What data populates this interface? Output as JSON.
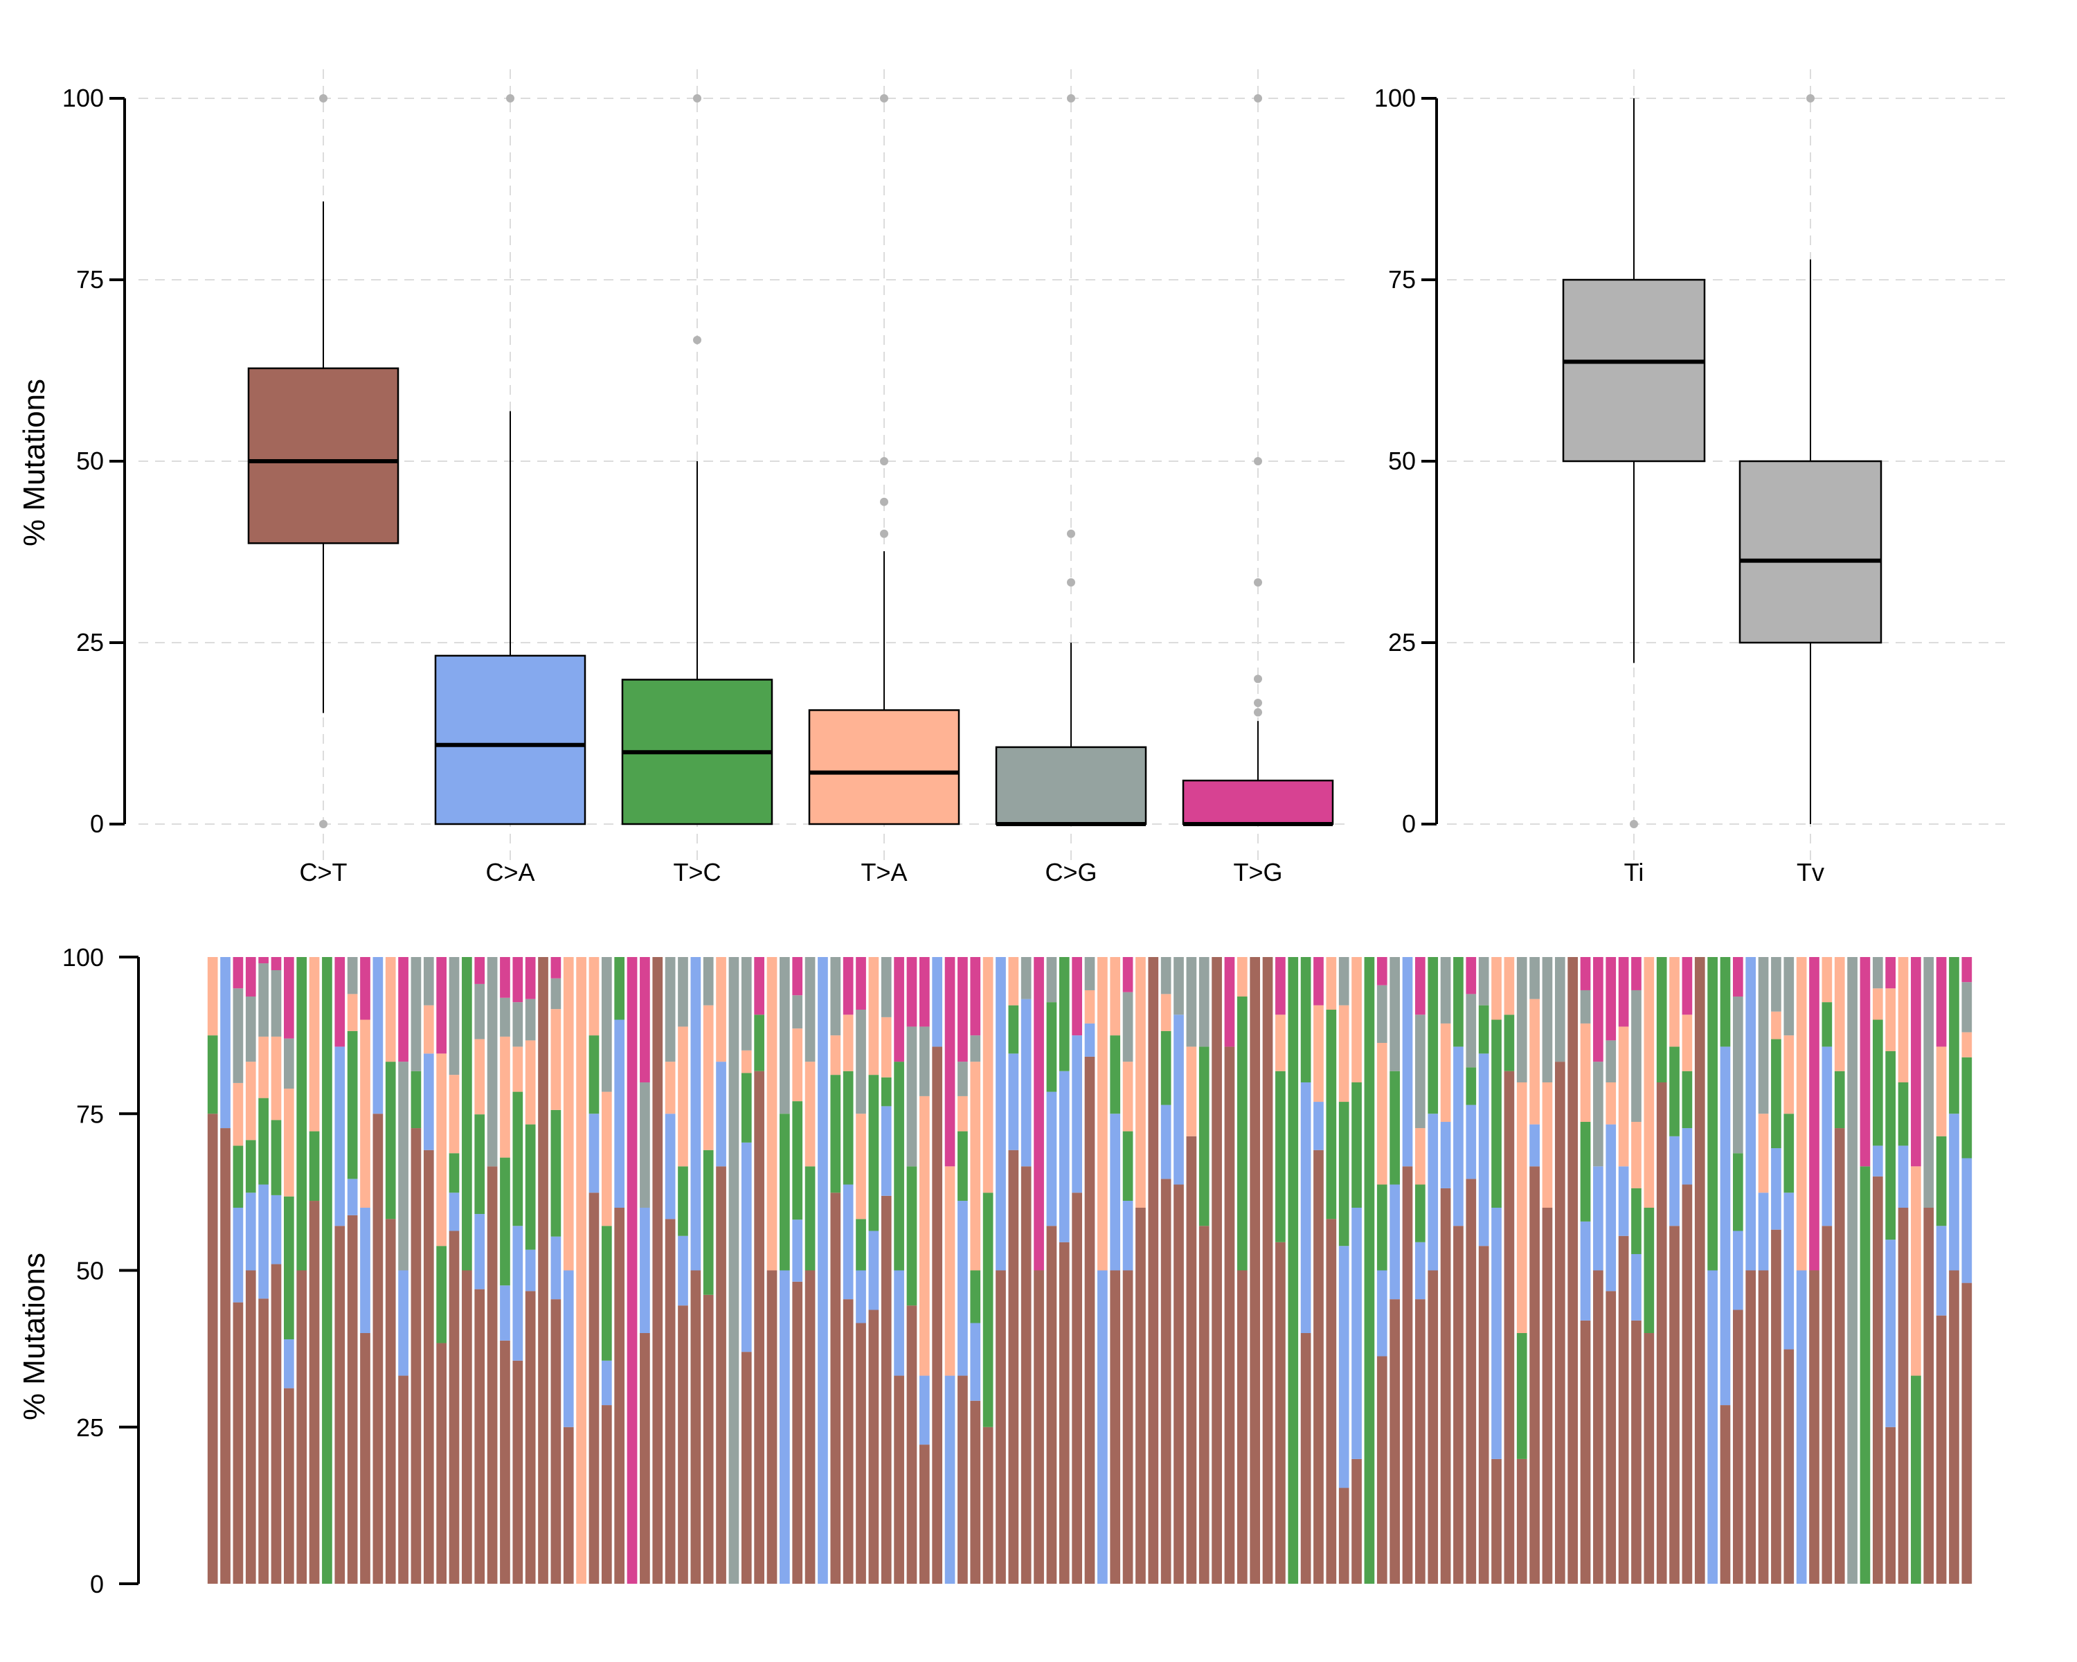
{
  "chart_data": [
    {
      "type": "boxplot",
      "panel": "top-left",
      "title": "",
      "xlabel": "",
      "ylabel": "% Mutations",
      "ylim": [
        0,
        100
      ],
      "yticks": [
        0,
        25,
        50,
        75,
        100
      ],
      "grid": true,
      "categories": [
        "C>T",
        "C>A",
        "T>C",
        "T>A",
        "C>G",
        "T>G"
      ],
      "colors": [
        "#A3675B",
        "#85A9EE",
        "#4EA24E",
        "#FFB394",
        "#95A3A0",
        "#D74292"
      ],
      "boxes": [
        {
          "name": "C>T",
          "whisker_low": 15.3,
          "q1": 38.7,
          "median": 50.0,
          "q3": 62.8,
          "whisker_high": 85.8,
          "outliers": [
            100,
            0
          ]
        },
        {
          "name": "C>A",
          "whisker_low": 0,
          "q1": 0,
          "median": 10.9,
          "q3": 23.2,
          "whisker_high": 56.9,
          "outliers": [
            100
          ]
        },
        {
          "name": "T>C",
          "whisker_low": 0,
          "q1": 0,
          "median": 9.9,
          "q3": 19.9,
          "whisker_high": 50.0,
          "outliers": [
            100,
            66.7
          ]
        },
        {
          "name": "T>A",
          "whisker_low": 0,
          "q1": 0,
          "median": 7.1,
          "q3": 15.7,
          "whisker_high": 37.6,
          "outliers": [
            100,
            50,
            44.4,
            40
          ]
        },
        {
          "name": "C>G",
          "whisker_low": 0,
          "q1": 0,
          "median": 0,
          "q3": 10.6,
          "whisker_high": 25.0,
          "outliers": [
            100,
            40,
            33.3
          ]
        },
        {
          "name": "T>G",
          "whisker_low": 0,
          "q1": 0,
          "median": 0,
          "q3": 6.0,
          "whisker_high": 14.2,
          "outliers": [
            100,
            50,
            33.3,
            20,
            16.7,
            15.4
          ]
        }
      ]
    },
    {
      "type": "boxplot",
      "panel": "top-right",
      "title": "",
      "xlabel": "",
      "ylabel": "",
      "ylim": [
        0,
        100
      ],
      "yticks": [
        0,
        25,
        50,
        75,
        100
      ],
      "grid": true,
      "categories": [
        "Ti",
        "Tv"
      ],
      "colors": [
        "#B3B3B3",
        "#B3B3B3"
      ],
      "boxes": [
        {
          "name": "Ti",
          "whisker_low": 22.2,
          "q1": 50.0,
          "median": 63.7,
          "q3": 75.0,
          "whisker_high": 100,
          "outliers": [
            0
          ]
        },
        {
          "name": "Tv",
          "whisker_low": 0,
          "q1": 25.0,
          "median": 36.3,
          "q3": 50.0,
          "whisker_high": 77.8,
          "outliers": [
            100
          ]
        }
      ]
    },
    {
      "type": "bar",
      "stacked": true,
      "panel": "bottom",
      "title": "",
      "xlabel": "",
      "ylabel": "% Mutations",
      "ylim": [
        0,
        100
      ],
      "yticks": [
        0,
        25,
        50,
        75,
        100
      ],
      "grid": false,
      "series_names": [
        "C>T",
        "C>A",
        "T>C",
        "T>A",
        "C>G",
        "T>G"
      ],
      "series_colors": [
        "#A3675B",
        "#85A9EE",
        "#4EA24E",
        "#FFB394",
        "#95A3A0",
        "#D74292"
      ],
      "samples": [
        [
          75,
          0,
          12.5,
          12.5,
          0,
          0
        ],
        [
          72.7,
          27.3,
          0,
          0,
          0,
          0
        ],
        [
          44.9,
          15.1,
          9.9,
          10,
          15.1,
          5
        ],
        [
          50,
          12.4,
          8.4,
          12.5,
          10.4,
          6.3
        ],
        [
          45.5,
          18.2,
          13.8,
          9.8,
          11.7,
          1
        ],
        [
          51,
          11,
          12,
          13.3,
          10.6,
          2.1
        ],
        [
          31.2,
          7.8,
          22.8,
          17.2,
          8,
          13
        ],
        [
          50,
          0,
          50,
          0,
          0,
          0
        ],
        [
          61.1,
          0,
          11.1,
          27.8,
          0,
          0
        ],
        [
          0,
          0,
          100,
          0,
          0,
          0
        ],
        [
          57.1,
          28.6,
          0,
          0,
          0,
          14.3
        ],
        [
          58.8,
          5.8,
          23.6,
          5.9,
          5.9,
          0
        ],
        [
          40,
          20,
          0,
          30,
          0,
          10
        ],
        [
          75,
          25,
          0,
          0,
          0,
          0
        ],
        [
          58.2,
          0,
          25.1,
          16.7,
          0,
          0
        ],
        [
          33.2,
          16.8,
          0,
          0,
          33.3,
          16.7
        ],
        [
          72.7,
          0,
          9.1,
          0,
          18.2,
          0
        ],
        [
          69.2,
          15.4,
          0,
          7.7,
          7.7,
          0
        ],
        [
          38.4,
          0,
          15.5,
          30.7,
          0,
          15.4
        ],
        [
          56.3,
          6.1,
          6.3,
          12.5,
          18.8,
          0
        ],
        [
          50,
          0,
          50,
          0,
          0,
          0
        ],
        [
          47,
          12,
          15.9,
          12,
          8.8,
          4.3
        ],
        [
          66.6,
          0,
          0,
          0,
          33.4,
          0
        ],
        [
          38.8,
          8.8,
          20.4,
          19.3,
          6.2,
          6.5
        ],
        [
          35.6,
          21.5,
          21.4,
          7.2,
          7.1,
          7.2
        ],
        [
          46.7,
          6.6,
          20,
          13.4,
          6.6,
          6.7
        ],
        [
          100,
          0,
          0,
          0,
          0,
          0
        ],
        [
          45.4,
          10,
          20.2,
          16.1,
          4.9,
          3.4
        ],
        [
          25,
          25,
          0,
          50,
          0,
          0
        ],
        [
          0,
          0,
          0,
          100,
          0,
          0
        ],
        [
          62.4,
          12.6,
          12.5,
          12.5,
          0,
          0
        ],
        [
          28.5,
          7.1,
          21.5,
          21.4,
          21.5,
          0
        ],
        [
          60,
          30,
          10,
          0,
          0,
          0
        ],
        [
          0,
          0,
          0,
          0,
          0,
          100
        ],
        [
          40,
          20,
          0,
          0,
          20,
          20
        ],
        [
          100,
          0,
          0,
          0,
          0,
          0
        ],
        [
          58.2,
          16.8,
          0,
          8.3,
          16.7,
          0
        ],
        [
          44.4,
          11.1,
          11.1,
          22.3,
          11.1,
          0
        ],
        [
          50,
          50,
          0,
          0,
          0,
          0
        ],
        [
          46.1,
          0,
          23.1,
          23.1,
          7.7,
          0
        ],
        [
          66.6,
          16.7,
          0,
          16.7,
          0,
          0
        ],
        [
          0,
          0,
          0,
          0,
          100,
          0
        ],
        [
          37,
          33.4,
          11.1,
          3.6,
          14.9,
          0
        ],
        [
          81.8,
          0,
          9,
          0,
          0,
          9.2
        ],
        [
          50,
          0,
          0,
          50,
          0,
          0
        ],
        [
          0,
          50,
          25,
          0,
          25,
          0
        ],
        [
          48.2,
          9.9,
          18.9,
          11.6,
          5.3,
          6.1
        ],
        [
          50,
          0,
          16.6,
          16.7,
          16.7,
          0
        ],
        [
          0,
          100,
          0,
          0,
          0,
          0
        ],
        [
          62.4,
          0,
          18.8,
          6.3,
          12.5,
          0
        ],
        [
          45.4,
          18.3,
          18.1,
          9,
          0,
          9.2
        ],
        [
          41.6,
          8.4,
          8.2,
          16.8,
          16.6,
          8.4
        ],
        [
          43.7,
          12.6,
          24.9,
          18.8,
          0,
          0
        ],
        [
          61.9,
          14.3,
          4.6,
          9.6,
          9.6,
          0
        ],
        [
          33.2,
          16.8,
          33.3,
          0,
          0,
          16.7
        ],
        [
          44.4,
          0,
          22.2,
          0,
          22.3,
          11.1
        ],
        [
          22.2,
          11,
          0,
          44.6,
          11.1,
          11.1
        ],
        [
          85.7,
          14.3,
          0,
          0,
          0,
          0
        ],
        [
          0,
          33.2,
          0,
          33.4,
          0,
          33.4
        ],
        [
          33.2,
          27.9,
          11.1,
          5.6,
          5.5,
          16.7
        ],
        [
          29.2,
          12.4,
          8.4,
          33.3,
          4.2,
          12.5
        ],
        [
          25,
          0,
          37.4,
          37.6,
          0,
          0
        ],
        [
          50,
          50,
          0,
          0,
          0,
          0
        ],
        [
          69.2,
          15.4,
          7.7,
          7.7,
          0,
          0
        ],
        [
          66.6,
          26.7,
          0,
          0,
          6.7,
          0
        ],
        [
          50,
          0,
          0,
          0,
          0,
          50
        ],
        [
          57.1,
          21.4,
          14.3,
          0,
          7.2,
          0
        ],
        [
          54.5,
          27.3,
          18.2,
          0,
          0,
          0
        ],
        [
          62.4,
          25.1,
          0,
          0,
          0,
          12.5
        ],
        [
          84.1,
          5.3,
          0,
          5.3,
          5.3,
          0
        ],
        [
          0,
          50,
          0,
          50,
          0,
          0
        ],
        [
          50,
          25,
          12.5,
          12.5,
          0,
          0
        ],
        [
          50,
          11.1,
          11.1,
          11.1,
          11.1,
          5.6
        ],
        [
          60,
          0,
          0,
          40,
          0,
          0
        ],
        [
          100,
          0,
          0,
          0,
          0,
          0
        ],
        [
          64.6,
          11.8,
          11.8,
          5.9,
          5.9,
          0
        ],
        [
          63.7,
          27.1,
          0,
          0,
          9.2,
          0
        ],
        [
          71.4,
          0,
          0,
          14.3,
          14.3,
          0
        ],
        [
          57.1,
          0,
          28.6,
          0,
          14.3,
          0
        ],
        [
          100,
          0,
          0,
          0,
          0,
          0
        ],
        [
          85.7,
          0,
          0,
          0,
          0,
          14.3
        ],
        [
          50,
          0,
          43.7,
          6.3,
          0,
          0
        ],
        [
          100,
          0,
          0,
          0,
          0,
          0
        ],
        [
          100,
          0,
          0,
          0,
          0,
          0
        ],
        [
          54.5,
          0,
          27.3,
          9,
          0,
          9.2
        ],
        [
          0,
          0,
          100,
          0,
          0,
          0
        ],
        [
          40,
          40,
          20,
          0,
          0,
          0
        ],
        [
          69.2,
          7.7,
          0,
          15.4,
          0,
          7.7
        ],
        [
          58.2,
          0,
          33.4,
          8.4,
          0,
          0
        ],
        [
          15.3,
          38.6,
          23,
          15.4,
          7.7,
          0
        ],
        [
          19.9,
          40.1,
          20,
          20,
          0,
          0
        ],
        [
          0,
          0,
          100,
          0,
          0,
          0
        ],
        [
          36.3,
          13.7,
          13.7,
          22.6,
          9.2,
          4.5
        ],
        [
          45.4,
          18.3,
          18.1,
          0,
          18.2,
          0
        ],
        [
          66.6,
          33.4,
          0,
          0,
          0,
          0
        ],
        [
          45.4,
          9.1,
          9.2,
          9,
          18.1,
          9.2
        ],
        [
          50,
          25,
          25,
          0,
          0,
          0
        ],
        [
          63.1,
          10.6,
          0,
          15.7,
          10.6,
          0
        ],
        [
          57.1,
          28.6,
          14.3,
          0,
          0,
          0
        ],
        [
          64.6,
          11.8,
          6,
          0,
          11.7,
          5.9
        ],
        [
          53.9,
          30.7,
          7.7,
          0,
          7.7,
          0
        ],
        [
          19.9,
          40.1,
          30,
          10,
          0,
          0
        ],
        [
          81.8,
          0,
          9,
          9.2,
          0,
          0
        ],
        [
          19.9,
          0,
          20.1,
          40,
          20,
          0
        ],
        [
          66.6,
          6.7,
          0,
          20,
          6.7,
          0
        ],
        [
          60,
          0,
          0,
          20,
          20,
          0
        ],
        [
          83.3,
          0,
          0,
          0,
          16.7,
          0
        ],
        [
          100,
          0,
          0,
          0,
          0,
          0
        ],
        [
          42,
          15.8,
          15.9,
          15.7,
          5.3,
          5.3
        ],
        [
          50,
          16.6,
          0,
          0,
          16.7,
          16.7
        ],
        [
          46.7,
          26.6,
          0,
          6.7,
          6.7,
          13.3
        ],
        [
          55.5,
          11.1,
          0,
          22.3,
          0,
          11.1
        ],
        [
          42,
          10.6,
          10.5,
          10.6,
          21,
          5.3
        ],
        [
          40,
          0,
          20,
          40,
          0,
          0
        ],
        [
          80,
          0,
          20,
          0,
          0,
          0
        ],
        [
          57.1,
          14.3,
          14.3,
          14.3,
          0,
          0
        ],
        [
          63.7,
          9,
          9.1,
          9,
          0,
          9.2
        ],
        [
          100,
          0,
          0,
          0,
          0,
          0
        ],
        [
          0,
          50,
          50,
          0,
          0,
          0
        ],
        [
          28.5,
          57.2,
          14.3,
          0,
          0,
          0
        ],
        [
          43.7,
          12.6,
          12.4,
          0,
          25,
          6.3
        ],
        [
          50,
          50,
          0,
          0,
          0,
          0
        ],
        [
          50,
          12.4,
          0,
          12.6,
          25,
          0
        ],
        [
          56.5,
          13,
          17.4,
          4.4,
          8.7,
          0
        ],
        [
          37.4,
          25,
          12.6,
          12.5,
          12.5,
          0
        ],
        [
          0,
          50,
          0,
          50,
          0,
          0
        ],
        [
          50,
          0,
          0,
          0,
          0,
          50
        ],
        [
          57.1,
          28.6,
          7.1,
          7.2,
          0,
          0
        ],
        [
          72.7,
          0,
          9.1,
          18.2,
          0,
          0
        ],
        [
          0,
          0,
          0,
          0,
          100,
          0
        ],
        [
          0,
          0,
          66.6,
          0,
          0,
          33.4
        ],
        [
          65,
          4.9,
          20.1,
          5,
          5,
          0
        ],
        [
          25,
          29.9,
          30.1,
          10,
          0,
          5
        ],
        [
          60,
          9.9,
          10.1,
          20,
          0,
          0
        ],
        [
          0,
          0,
          33.2,
          33.4,
          0,
          33.4
        ],
        [
          60,
          0,
          0,
          0,
          40,
          0
        ],
        [
          42.8,
          14.3,
          14.3,
          14.3,
          0,
          14.3
        ],
        [
          50,
          25,
          25,
          0,
          0,
          0
        ],
        [
          48,
          19.9,
          16.1,
          4,
          8,
          4
        ]
      ]
    }
  ],
  "labels": {
    "ylabel_top": "% Mutations",
    "ylabel_bottom": "% Mutations"
  }
}
